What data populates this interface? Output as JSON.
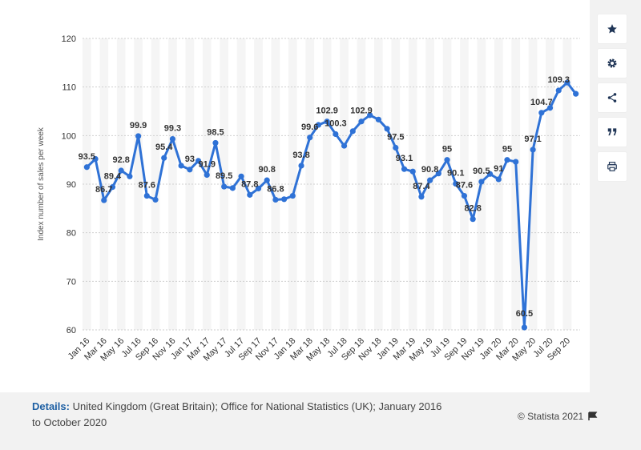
{
  "chart_data": {
    "type": "line",
    "title": "",
    "xlabel": "",
    "ylabel": "Index number of sales per week",
    "ylim": [
      60,
      120
    ],
    "yticks": [
      60,
      70,
      80,
      90,
      100,
      110,
      120
    ],
    "grid": true,
    "legend": "none",
    "line_color": "#2f72d6",
    "x_tick_labels": [
      "Jan 16",
      "Mar 16",
      "May 16",
      "Jul 16",
      "Sep 16",
      "Nov 16",
      "Jan 17",
      "Mar 17",
      "May 17",
      "Jul 17",
      "Sep 17",
      "Nov 17",
      "Jan 18",
      "Mar 18",
      "May 18",
      "Jul 18",
      "Sep 18",
      "Nov 18",
      "Jan 19",
      "Mar 19",
      "May 19",
      "Jul 19",
      "Sep 19",
      "Nov 19",
      "Jan 20",
      "Mar 20",
      "May 20",
      "Jul 20",
      "Sep 20"
    ],
    "values": [
      93.5,
      95.2,
      86.7,
      89.4,
      92.8,
      91.6,
      99.9,
      87.6,
      86.8,
      95.4,
      99.3,
      93.8,
      93,
      94.8,
      91.9,
      98.5,
      89.5,
      89.2,
      91.6,
      87.8,
      89.1,
      90.8,
      86.8,
      86.9,
      87.6,
      93.8,
      99.6,
      102.2,
      102.9,
      100.3,
      97.9,
      100.9,
      102.9,
      104.2,
      103.3,
      101.4,
      97.5,
      93.1,
      92.6,
      87.4,
      90.8,
      92.2,
      95,
      90.1,
      87.6,
      82.8,
      90.5,
      92.1,
      91,
      95,
      94.6,
      60.5,
      97.1,
      104.7,
      105.7,
      109.3,
      110.9,
      108.6
    ],
    "data_labels": [
      {
        "i": 0,
        "text": "93.5"
      },
      {
        "i": 2,
        "text": "86.7"
      },
      {
        "i": 3,
        "text": "89.4"
      },
      {
        "i": 4,
        "text": "92.8"
      },
      {
        "i": 6,
        "text": "99.9"
      },
      {
        "i": 7,
        "text": "87.6"
      },
      {
        "i": 9,
        "text": "95.4"
      },
      {
        "i": 10,
        "text": "99.3"
      },
      {
        "i": 12,
        "text": "93"
      },
      {
        "i": 14,
        "text": "91.9"
      },
      {
        "i": 15,
        "text": "98.5"
      },
      {
        "i": 16,
        "text": "89.5"
      },
      {
        "i": 19,
        "text": "87.8"
      },
      {
        "i": 21,
        "text": "90.8"
      },
      {
        "i": 22,
        "text": "86.8"
      },
      {
        "i": 25,
        "text": "93.8"
      },
      {
        "i": 26,
        "text": "99.6"
      },
      {
        "i": 28,
        "text": "102.9"
      },
      {
        "i": 29,
        "text": "100.3"
      },
      {
        "i": 32,
        "text": "102.9"
      },
      {
        "i": 36,
        "text": "97.5"
      },
      {
        "i": 37,
        "text": "93.1"
      },
      {
        "i": 39,
        "text": "87.4"
      },
      {
        "i": 40,
        "text": "90.8"
      },
      {
        "i": 42,
        "text": "95"
      },
      {
        "i": 43,
        "text": "90.1"
      },
      {
        "i": 44,
        "text": "87.6"
      },
      {
        "i": 45,
        "text": "82.8"
      },
      {
        "i": 46,
        "text": "90.5"
      },
      {
        "i": 48,
        "text": "91"
      },
      {
        "i": 49,
        "text": "95"
      },
      {
        "i": 51,
        "text": "60.5"
      },
      {
        "i": 52,
        "text": "97.1"
      },
      {
        "i": 53,
        "text": "104.7"
      },
      {
        "i": 55,
        "text": "109.3"
      }
    ]
  },
  "footer": {
    "details_label": "Details:",
    "details_text": " United Kingdom (Great Britain); Office for National Statistics (UK); January 2016 to October 2020",
    "copyright": "© Statista 2021"
  },
  "toolbar": {
    "icons": [
      "star-icon",
      "gear-icon",
      "share-icon",
      "quote-icon",
      "print-icon"
    ],
    "icon_color": "#1f3556"
  }
}
